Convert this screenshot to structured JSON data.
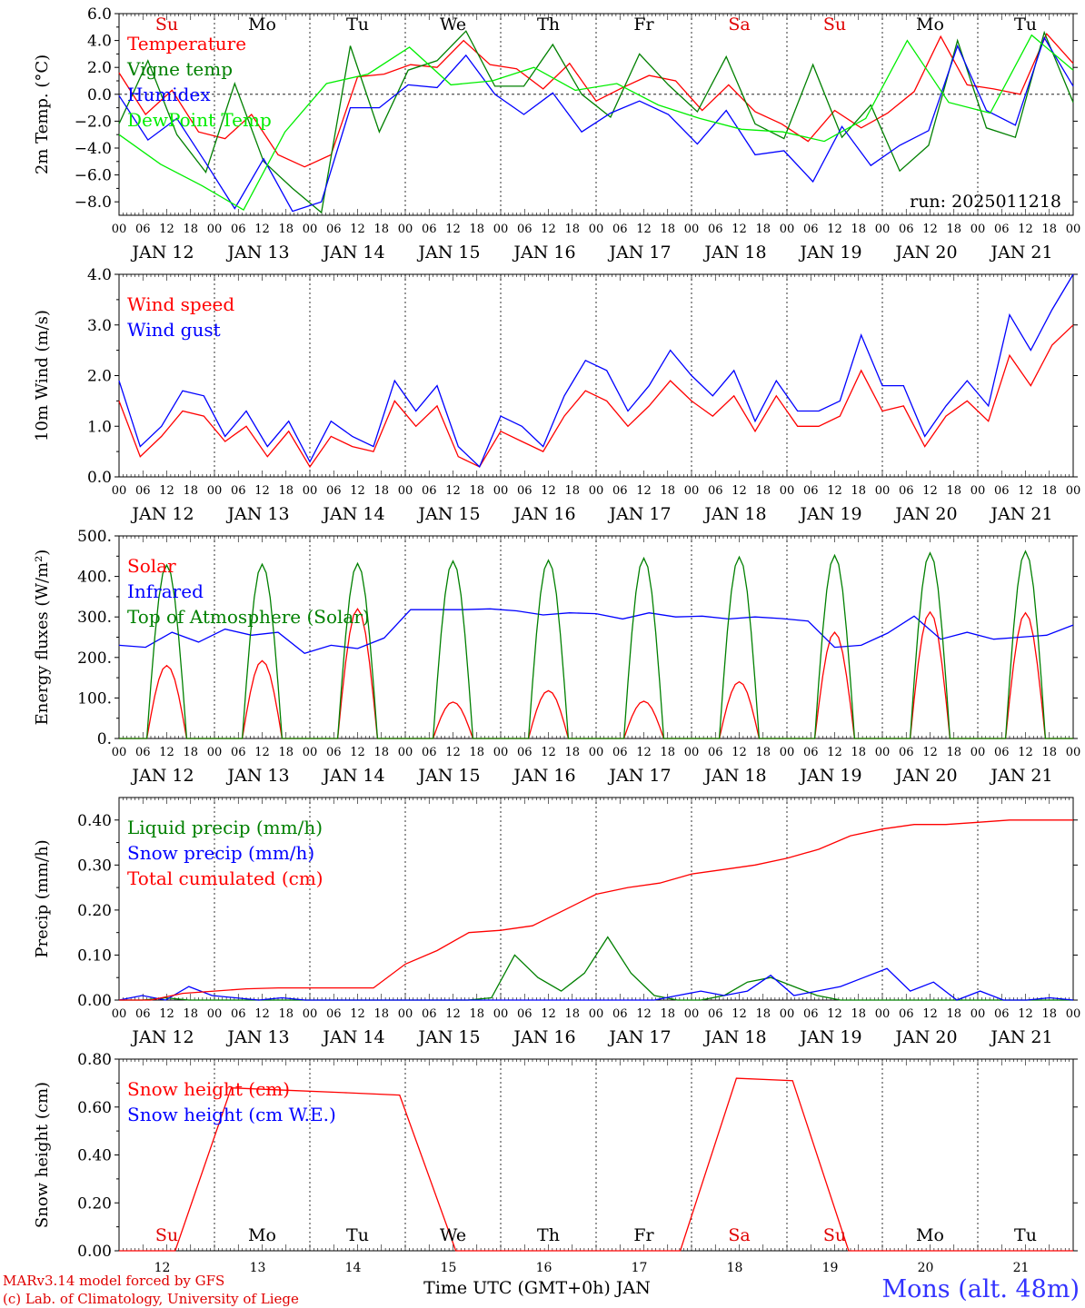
{
  "meta": {
    "run_label": "run: 2025011218",
    "footer_line1": "MARv3.14 model forced by GFS",
    "footer_line2": "(c) Lab. of Climatology, University of Liege",
    "location": "Mons (alt. 48m)",
    "xaxis_title": "Time UTC (GMT+0h) JAN"
  },
  "time_axis": {
    "hour_ticks": [
      "00",
      "06",
      "12",
      "18"
    ],
    "final_tick": "00",
    "dates": [
      "JAN 12",
      "JAN 13",
      "JAN 14",
      "JAN 15",
      "JAN 16",
      "JAN 17",
      "JAN 18",
      "JAN 19",
      "JAN 20",
      "JAN 21"
    ],
    "day_numbers": [
      "12",
      "13",
      "14",
      "15",
      "16",
      "17",
      "18",
      "19",
      "20",
      "21"
    ],
    "weekdays": [
      "Su",
      "Mo",
      "Tu",
      "We",
      "Th",
      "Fr",
      "Sa",
      "Su",
      "Mo",
      "Tu"
    ],
    "weekday_colors": [
      "#e00000",
      "#000000",
      "#000000",
      "#000000",
      "#000000",
      "#000000",
      "#e00000",
      "#e00000",
      "#000000",
      "#000000"
    ]
  },
  "colors": {
    "red": "#ff0000",
    "green": "#008000",
    "blue": "#0000ff",
    "lime": "#00ee00",
    "location": "#3333ff"
  },
  "chart_data": [
    {
      "type": "line",
      "ylabel": "2m Temp. (°C)",
      "ylim": [
        -9,
        6
      ],
      "yticks": [
        -8,
        -6,
        -4,
        -2,
        0,
        2,
        4,
        6
      ],
      "ytick_labels": [
        "−8.0",
        "−6.0",
        "−4.0",
        "−2.0",
        "0.0",
        "2.0",
        "4.0",
        "6.0"
      ],
      "zero_line": true,
      "x_hours": [
        0,
        6,
        12,
        18,
        24,
        30,
        36,
        42,
        48,
        54,
        60,
        66,
        72,
        78,
        84,
        90,
        96,
        102,
        108,
        114,
        120,
        126,
        132,
        138,
        144,
        150,
        156,
        162,
        168,
        174,
        180,
        186,
        192,
        198,
        204,
        210,
        216,
        222,
        228,
        234,
        240
      ],
      "series": [
        {
          "name": "Temperature",
          "color": "red",
          "values": [
            1.6,
            -1.5,
            0.3,
            -2.8,
            -3.3,
            -1.5,
            -4.5,
            -5.4,
            -4.5,
            1.3,
            1.5,
            2.2,
            2.0,
            4.0,
            2.2,
            1.9,
            0.4,
            2.3,
            -0.5,
            0.5,
            1.4,
            1.0,
            -1.2,
            0.7,
            -1.3,
            -2.2,
            -3.5,
            -1.2,
            -2.5,
            -1.4,
            0.2,
            4.3,
            0.7,
            0.4,
            0.0,
            4.5,
            2.3
          ]
        },
        {
          "name": "Vigne temp",
          "color": "green",
          "values": [
            -2.2,
            2.5,
            -3.0,
            -5.8,
            0.8,
            -5.0,
            -7.0,
            -8.8,
            3.6,
            -2.8,
            1.8,
            2.5,
            4.7,
            0.6,
            0.6,
            3.7,
            0.0,
            -1.7,
            3.0,
            0.7,
            -1.3,
            2.8,
            -2.2,
            -3.3,
            2.2,
            -3.2,
            -0.8,
            -5.7,
            -3.8,
            4.0,
            -2.5,
            -3.2,
            4.6,
            -0.6
          ]
        },
        {
          "name": "Humidex",
          "color": "blue",
          "values": [
            -0.1,
            -3.4,
            -1.8,
            -5.1,
            -8.5,
            -4.8,
            -8.7,
            -8.0,
            -1.0,
            -1.0,
            0.7,
            0.5,
            2.9,
            0.0,
            -1.5,
            0.1,
            -2.8,
            -1.4,
            -0.5,
            -1.5,
            -3.7,
            -1.2,
            -4.5,
            -4.2,
            -6.5,
            -2.4,
            -5.3,
            -3.8,
            -2.7,
            3.6,
            -1.2,
            -2.3,
            4.2,
            0.6
          ]
        },
        {
          "name": "DewPoint Temp",
          "color": "lime",
          "values": [
            -3.0,
            -5.2,
            -6.8,
            -8.6,
            -2.8,
            0.8,
            1.5,
            3.5,
            0.7,
            1.0,
            2.0,
            0.3,
            0.8,
            -0.8,
            -1.8,
            -2.6,
            -2.8,
            -3.5,
            -1.8,
            4.0,
            -0.6,
            -1.4,
            4.4,
            1.8
          ]
        }
      ]
    },
    {
      "type": "line",
      "ylabel": "10m Wind (m/s)",
      "ylim": [
        0,
        4
      ],
      "yticks": [
        0,
        1,
        2,
        3,
        4
      ],
      "ytick_labels": [
        "0.0",
        "1.0",
        "2.0",
        "3.0",
        "4.0"
      ],
      "series": [
        {
          "name": "Wind speed",
          "color": "red",
          "values": [
            1.5,
            0.4,
            0.8,
            1.3,
            1.2,
            0.7,
            1.0,
            0.4,
            0.9,
            0.2,
            0.8,
            0.6,
            0.5,
            1.5,
            1.0,
            1.4,
            0.4,
            0.2,
            0.9,
            0.7,
            0.5,
            1.2,
            1.7,
            1.5,
            1.0,
            1.4,
            1.9,
            1.5,
            1.2,
            1.6,
            0.9,
            1.6,
            1.0,
            1.0,
            1.2,
            2.1,
            1.3,
            1.4,
            0.6,
            1.2,
            1.5,
            1.1,
            2.4,
            1.8,
            2.6,
            3.0
          ]
        },
        {
          "name": "Wind gust",
          "color": "blue",
          "values": [
            1.9,
            0.6,
            1.0,
            1.7,
            1.6,
            0.8,
            1.3,
            0.6,
            1.1,
            0.3,
            1.1,
            0.8,
            0.6,
            1.9,
            1.3,
            1.8,
            0.6,
            0.2,
            1.2,
            1.0,
            0.6,
            1.6,
            2.3,
            2.1,
            1.3,
            1.8,
            2.5,
            2.0,
            1.6,
            2.1,
            1.1,
            1.9,
            1.3,
            1.3,
            1.5,
            2.8,
            1.8,
            1.8,
            0.8,
            1.4,
            1.9,
            1.4,
            3.2,
            2.5,
            3.3,
            4.0
          ]
        }
      ]
    },
    {
      "type": "line",
      "ylabel": "Energy fluxes (W/m²)",
      "ylim": [
        0,
        500
      ],
      "yticks": [
        0,
        100,
        200,
        300,
        400,
        500
      ],
      "ytick_labels": [
        "0.",
        "100.",
        "200.",
        "300.",
        "400.",
        "500."
      ],
      "series": [
        {
          "name": "Solar",
          "color": "red",
          "daily_peaks": [
            180,
            192,
            320,
            90,
            118,
            92,
            140,
            262,
            312,
            310
          ]
        },
        {
          "name": "Infrared",
          "color": "blue",
          "values": [
            230,
            225,
            262,
            238,
            270,
            255,
            262,
            210,
            230,
            222,
            248,
            318,
            318,
            318,
            320,
            315,
            305,
            310,
            308,
            295,
            310,
            300,
            302,
            295,
            300,
            296,
            290,
            225,
            230,
            260,
            302,
            245,
            262,
            245,
            250,
            255,
            280
          ]
        },
        {
          "name": "Top of Atmosphere (Solar)",
          "color": "green",
          "daily_peaks": [
            428,
            430,
            432,
            438,
            440,
            445,
            448,
            452,
            458,
            462
          ]
        }
      ]
    },
    {
      "type": "line",
      "ylabel": "Precip (mm/h)",
      "ylim": [
        0,
        0.45
      ],
      "yticks": [
        0,
        0.1,
        0.2,
        0.3,
        0.4
      ],
      "ytick_labels": [
        "0.00",
        "0.10",
        "0.20",
        "0.30",
        "0.40"
      ],
      "series": [
        {
          "name": "Liquid precip (mm/h)",
          "color": "green",
          "values": [
            0,
            0,
            0.005,
            0,
            0,
            0,
            0,
            0,
            0,
            0,
            0,
            0,
            0,
            0,
            0,
            0,
            0.005,
            0.1,
            0.05,
            0.02,
            0.06,
            0.14,
            0.06,
            0.01,
            0,
            0,
            0.01,
            0.04,
            0.05,
            0.03,
            0.01,
            0,
            0,
            0,
            0,
            0,
            0,
            0,
            0,
            0,
            0,
            0
          ]
        },
        {
          "name": "Snow precip (mm/h)",
          "color": "blue",
          "values": [
            0,
            0.01,
            0,
            0.03,
            0.01,
            0.005,
            0,
            0.005,
            0,
            0,
            0,
            0,
            0,
            0,
            0,
            0,
            0,
            0,
            0,
            0,
            0,
            0,
            0,
            0,
            0.01,
            0.02,
            0.01,
            0.02,
            0.055,
            0.01,
            0.02,
            0.03,
            0.05,
            0.07,
            0.02,
            0.04,
            0,
            0.02,
            0,
            0,
            0.005,
            0
          ]
        },
        {
          "name": "Total cumulated (cm)",
          "color": "red",
          "values": [
            0,
            0,
            0.015,
            0.02,
            0.025,
            0.027,
            0.027,
            0.027,
            0.027,
            0.08,
            0.11,
            0.15,
            0.155,
            0.165,
            0.2,
            0.235,
            0.25,
            0.26,
            0.28,
            0.29,
            0.3,
            0.315,
            0.335,
            0.365,
            0.38,
            0.39,
            0.39,
            0.395,
            0.4,
            0.4,
            0.4
          ]
        }
      ]
    },
    {
      "type": "line",
      "ylabel": "Snow height (cm)",
      "ylim": [
        0,
        0.8
      ],
      "yticks": [
        0,
        0.2,
        0.4,
        0.6,
        0.8
      ],
      "ytick_labels": [
        "0.00",
        "0.20",
        "0.40",
        "0.60",
        "0.80"
      ],
      "series": [
        {
          "name": "Snow height (cm)",
          "color": "red",
          "values": [
            0,
            0,
            0.68,
            0.67,
            0.66,
            0.65,
            0,
            0,
            0,
            0,
            0,
            0.72,
            0.71,
            0,
            0,
            0,
            0,
            0
          ]
        },
        {
          "name": "Snow height (cm W.E.)",
          "color": "blue",
          "values": []
        }
      ]
    }
  ]
}
